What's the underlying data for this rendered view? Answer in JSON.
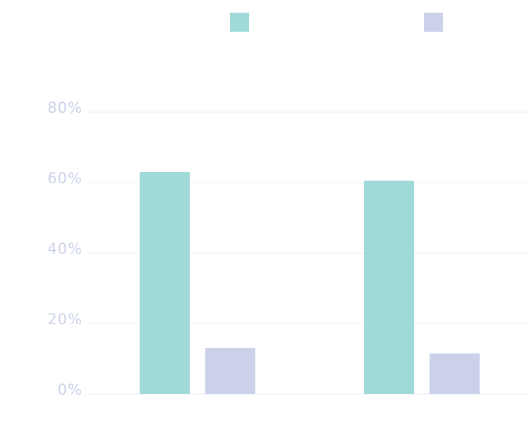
{
  "chart_data": {
    "type": "bar",
    "categories": [
      null,
      null
    ],
    "series": [
      {
        "color": "#9fdad9",
        "values": [
          63,
          60.5
        ]
      },
      {
        "color": "#cbd1e8",
        "values": [
          13,
          11.5
        ]
      }
    ],
    "ylim": [
      0,
      80
    ],
    "yticks": [
      {
        "value": 0,
        "label": "0%"
      },
      {
        "value": 20,
        "label": "20%"
      },
      {
        "value": 40,
        "label": "40%"
      },
      {
        "value": 60,
        "label": "60%"
      },
      {
        "value": 80,
        "label": "80%"
      }
    ],
    "grid": true
  }
}
